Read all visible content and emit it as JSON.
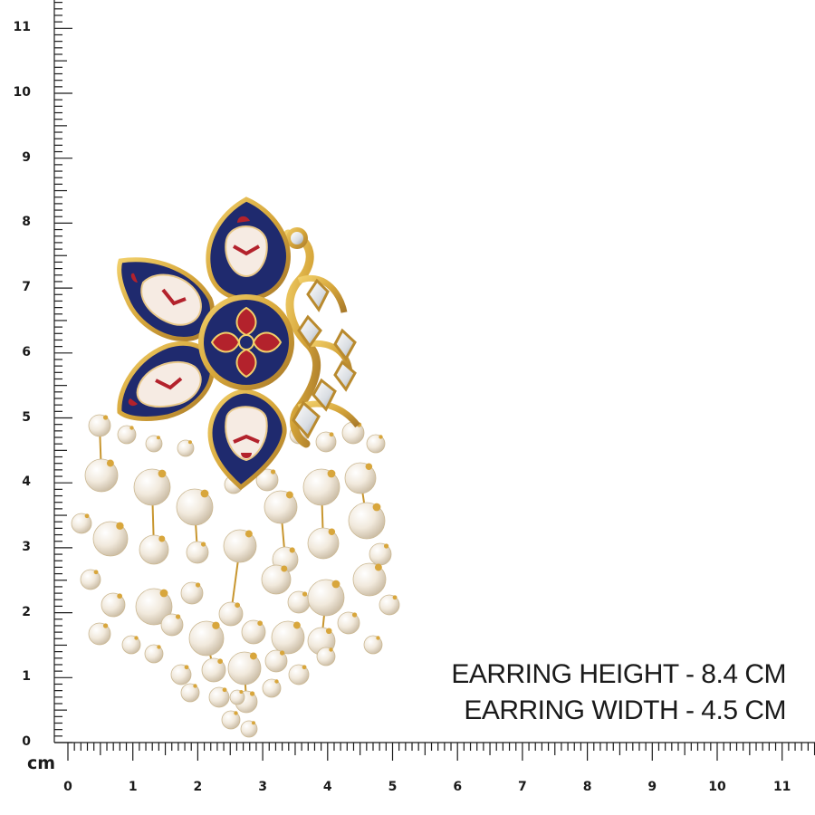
{
  "ruler": {
    "unit": "cm",
    "y_labels": [
      "0",
      "1",
      "2",
      "3",
      "4",
      "5",
      "6",
      "7",
      "8",
      "9",
      "10",
      "11"
    ],
    "x_labels": [
      "0",
      "1",
      "2",
      "3",
      "4",
      "5",
      "6",
      "7",
      "8",
      "9",
      "10",
      "11"
    ]
  },
  "dimensions": {
    "height_text": "EARRING HEIGHT - 8.4 CM",
    "width_text": "EARRING WIDTH - 4.5 CM"
  },
  "product": {
    "subject": "earring-photo",
    "colors": {
      "gold": "#d6a63a",
      "navy_enamel": "#1f2a6e",
      "red_enamel": "#b3222c",
      "white_enamel": "#f6ebe3",
      "pearl": "#f3ece0"
    }
  }
}
